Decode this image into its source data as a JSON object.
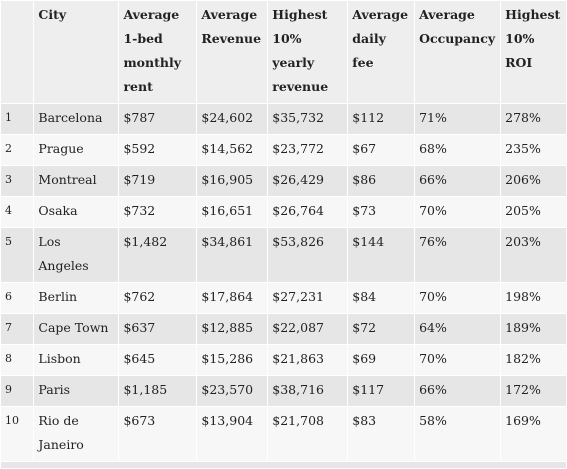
{
  "table": {
    "headers": [
      "",
      "City",
      "Average 1-bed monthly rent",
      "Average Revenue",
      "Highest 10% yearly revenue",
      "Average daily fee",
      "Average Occupancy",
      "Highest 10% ROI"
    ],
    "rows": [
      [
        "1",
        "Barcelona",
        "$787",
        "$24,602",
        "$35,732",
        "$112",
        "71%",
        "278%"
      ],
      [
        "2",
        "Prague",
        "$592",
        "$14,562",
        "$23,772",
        "$67",
        "68%",
        "235%"
      ],
      [
        "3",
        "Montreal",
        "$719",
        "$16,905",
        "$26,429",
        "$86",
        "66%",
        "206%"
      ],
      [
        "4",
        "Osaka",
        "$732",
        "$16,651",
        "$26,764",
        "$73",
        "70%",
        "205%"
      ],
      [
        "5",
        "Los Angeles",
        "$1,482",
        "$34,861",
        "$53,826",
        "$144",
        "76%",
        "203%"
      ],
      [
        "6",
        "Berlin",
        "$762",
        "$17,864",
        "$27,231",
        "$84",
        "70%",
        "198%"
      ],
      [
        "7",
        "Cape Town",
        "$637",
        "$12,885",
        "$22,087",
        "$72",
        "64%",
        "189%"
      ],
      [
        "8",
        "Lisbon",
        "$645",
        "$15,286",
        "$21,863",
        "$69",
        "70%",
        "182%"
      ],
      [
        "9",
        "Paris",
        "$1,185",
        "$23,570",
        "$38,716",
        "$117",
        "66%",
        "172%"
      ],
      [
        "10",
        "Rio de Janeiro",
        "$673",
        "$13,904",
        "$21,708",
        "$83",
        "58%",
        "169%"
      ]
    ]
  }
}
